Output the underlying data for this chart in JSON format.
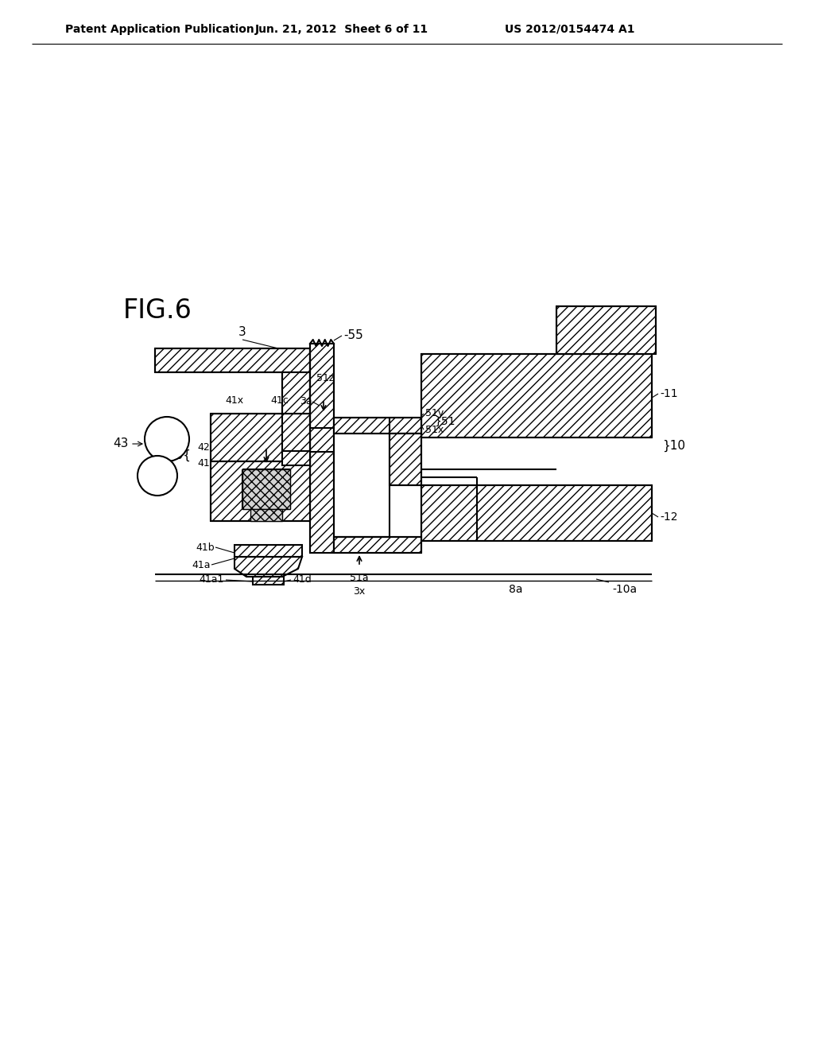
{
  "header_left": "Patent Application Publication",
  "header_center": "Jun. 21, 2012  Sheet 6 of 11",
  "header_right": "US 2012/0154474 A1",
  "fig_label": "FIG.6",
  "background": "#ffffff"
}
